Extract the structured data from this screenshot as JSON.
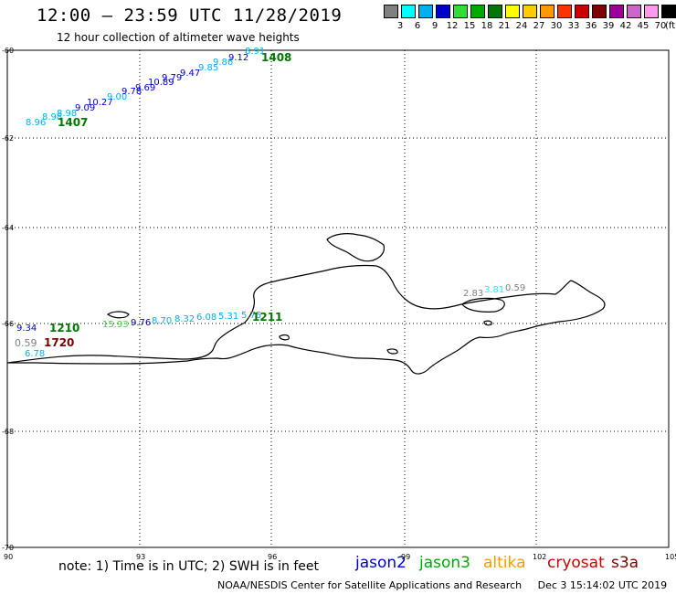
{
  "header": {
    "title": "12:00 – 23:59 UTC 11/28/2019",
    "subtitle": "12 hour collection of altimeter wave heights"
  },
  "legend": {
    "colors": [
      "#808080",
      "#00ffff",
      "#00b0f0",
      "#0000cc",
      "#33dd33",
      "#00aa00",
      "#007700",
      "#ffff00",
      "#ffcc00",
      "#ff9900",
      "#ff3300",
      "#cc0000",
      "#800000",
      "#990099",
      "#cc66cc",
      "#ff99ee",
      "#000000"
    ],
    "labels": [
      "3",
      "6",
      "9",
      "12",
      "15",
      "18",
      "21",
      "24",
      "27",
      "30",
      "33",
      "36",
      "39",
      "42",
      "45",
      "70"
    ],
    "unit": "(ft)"
  },
  "axes": {
    "lat_labels": [
      "-60",
      "-62",
      "-64",
      "-66",
      "-68",
      "-70"
    ],
    "lon_labels": [
      "90",
      "93",
      "96",
      "99",
      "102",
      "105"
    ]
  },
  "tracks": [
    {
      "id": "1407",
      "label": "1407",
      "label_color": "#007700",
      "values": [
        "8.96",
        "8.98",
        "8.98",
        "9.09",
        "10.27",
        "9.00",
        "9.78",
        "9.69",
        "10.89",
        "9.79",
        "9.47",
        "9.85",
        "9.86",
        "9.12",
        "8.91"
      ],
      "colors": [
        "#00b0f0",
        "#00b0f0",
        "#00b0f0",
        "#0000cc",
        "#0000cc",
        "#00b0f0",
        "#0000cc",
        "#0000cc",
        "#0000cc",
        "#0000cc",
        "#0000cc",
        "#00b0f0",
        "#00b0f0",
        "#0000cc",
        "#00b0f0"
      ]
    },
    {
      "id": "1408",
      "label": "1408",
      "label_color": "#007700"
    },
    {
      "id": "1210",
      "label": "1210",
      "label_color": "#007700",
      "values": [
        "9.34",
        "15.93",
        "9.76",
        "8.70",
        "8.32",
        "6.08",
        "5.31",
        "5.75"
      ],
      "colors": [
        "#0000cc",
        "#33dd33",
        "#0000cc",
        "#00b0f0",
        "#00b0f0",
        "#00b0f0",
        "#00b0f0",
        "#00b0f0"
      ]
    },
    {
      "id": "1211",
      "label": "1211",
      "label_color": "#007700"
    },
    {
      "id": "1720",
      "label": "1720",
      "label_color": "#800000",
      "values": [
        "0.59",
        "6.78"
      ],
      "colors": [
        "#808080",
        "#00b0f0"
      ]
    },
    {
      "id": "east",
      "values": [
        "2.83",
        "3.81",
        "0.59"
      ],
      "colors": [
        "#808080",
        "#00ffff",
        "#808080"
      ]
    }
  ],
  "footer": {
    "note": "note: 1) Time is in UTC; 2) SWH is in feet",
    "satellites": [
      {
        "name": "jason2",
        "color": "#0000cc"
      },
      {
        "name": "jason3",
        "color": "#00aa00"
      },
      {
        "name": "altika",
        "color": "#ff9900"
      },
      {
        "name": "cryosat",
        "color": "#cc0000"
      },
      {
        "name": "s3a",
        "color": "#800000"
      }
    ],
    "credit": "NOAA/NESDIS Center for Satellite Applications and Research",
    "timestamp": "Dec  3 15:14:02 UTC 2019"
  }
}
